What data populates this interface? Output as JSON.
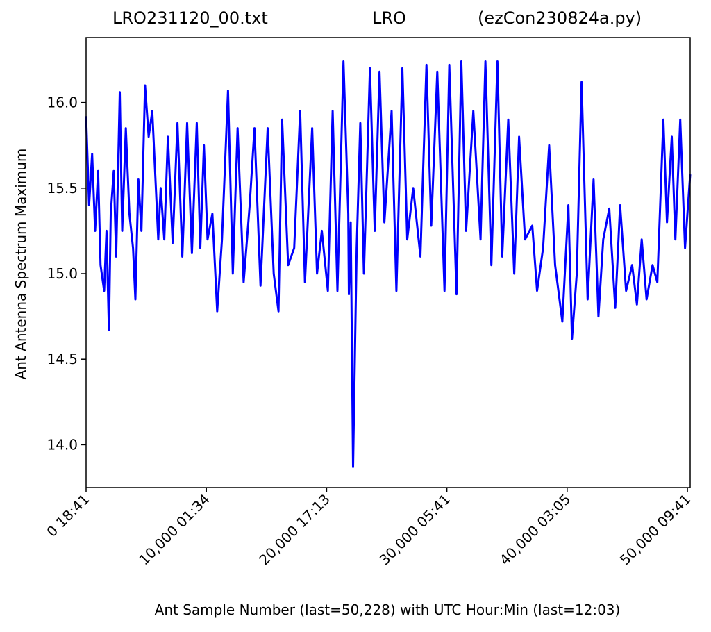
{
  "chart_data": {
    "type": "line",
    "title_parts": [
      "LRO231120_00.txt",
      "LRO",
      "(ezCon230824a.py)"
    ],
    "xlabel": "Ant Sample Number (last=50,228) with UTC Hour:Min (last=12:03)",
    "ylabel": "Ant Antenna Spectrum Maximum",
    "xlim": [
      0,
      50228
    ],
    "ylim": [
      13.75,
      16.38
    ],
    "x_ticks": [
      {
        "value": 0,
        "label": "0  18:41"
      },
      {
        "value": 10000,
        "label": "10,000  01:34"
      },
      {
        "value": 20000,
        "label": "20,000  17:13"
      },
      {
        "value": 30000,
        "label": "30,000  05:41"
      },
      {
        "value": 40000,
        "label": "40,000  03:05"
      },
      {
        "value": 50000,
        "label": "50,000  09:41"
      }
    ],
    "y_ticks": [
      {
        "value": 14.0,
        "label": "14.0"
      },
      {
        "value": 14.5,
        "label": "14.5"
      },
      {
        "value": 15.0,
        "label": "15.0"
      },
      {
        "value": 15.5,
        "label": "15.5"
      },
      {
        "value": 16.0,
        "label": "16.0"
      }
    ],
    "grid": false,
    "series": [
      {
        "color": "#0000ff",
        "x": [
          0,
          250,
          500,
          750,
          1000,
          1200,
          1500,
          1700,
          1900,
          2050,
          2300,
          2500,
          2800,
          3000,
          3300,
          3600,
          3900,
          4100,
          4350,
          4600,
          4900,
          5200,
          5500,
          5800,
          6000,
          6200,
          6500,
          6800,
          7200,
          7600,
          8000,
          8400,
          8800,
          9200,
          9500,
          9800,
          10100,
          10500,
          10900,
          11300,
          11800,
          12200,
          12600,
          13100,
          13600,
          14000,
          14500,
          15100,
          15600,
          16000,
          16300,
          16800,
          17300,
          17800,
          18200,
          18800,
          19200,
          19600,
          20100,
          20500,
          20900,
          21400,
          21800,
          21850,
          22000,
          22200,
          22500,
          22800,
          23100,
          23600,
          24000,
          24400,
          24800,
          25400,
          25800,
          26300,
          26700,
          27200,
          27800,
          28300,
          28700,
          29200,
          29800,
          30200,
          30800,
          31200,
          31600,
          32200,
          32800,
          33200,
          33700,
          34200,
          34600,
          35100,
          35600,
          36000,
          36500,
          37100,
          37500,
          38000,
          38500,
          39000,
          39600,
          40100,
          40400,
          40800,
          41200,
          41700,
          42200,
          42600,
          43000,
          43500,
          44000,
          44400,
          44900,
          45400,
          45800,
          46200,
          46600,
          47100,
          47500,
          48000,
          48300,
          48700,
          49000,
          49400,
          49800,
          50228
        ],
        "y": [
          15.92,
          15.4,
          15.7,
          15.25,
          15.6,
          15.05,
          14.9,
          15.25,
          14.67,
          15.35,
          15.6,
          15.1,
          16.06,
          15.25,
          15.85,
          15.35,
          15.15,
          14.85,
          15.55,
          15.25,
          16.1,
          15.8,
          15.95,
          15.5,
          15.2,
          15.5,
          15.2,
          15.8,
          15.18,
          15.88,
          15.1,
          15.88,
          15.12,
          15.88,
          15.15,
          15.75,
          15.2,
          15.35,
          14.78,
          15.2,
          16.07,
          15.0,
          15.85,
          14.95,
          15.4,
          15.85,
          14.93,
          15.85,
          15.0,
          14.78,
          15.9,
          15.05,
          15.15,
          15.95,
          14.95,
          15.85,
          15.0,
          15.25,
          14.9,
          15.95,
          14.9,
          16.24,
          15.35,
          14.88,
          15.3,
          13.87,
          15.15,
          15.88,
          15.0,
          16.2,
          15.25,
          16.18,
          15.3,
          15.95,
          14.9,
          16.2,
          15.2,
          15.5,
          15.1,
          16.22,
          15.28,
          16.18,
          14.9,
          16.22,
          14.88,
          16.24,
          15.25,
          15.95,
          15.2,
          16.24,
          15.05,
          16.24,
          15.1,
          15.9,
          15.0,
          15.8,
          15.2,
          15.28,
          14.9,
          15.15,
          15.75,
          15.05,
          14.72,
          15.4,
          14.62,
          15.0,
          16.12,
          14.85,
          15.55,
          14.75,
          15.2,
          15.38,
          14.8,
          15.4,
          14.9,
          15.05,
          14.82,
          15.2,
          14.85,
          15.05,
          14.95,
          15.9,
          15.3,
          15.8,
          15.2,
          15.9,
          15.15,
          15.58
        ]
      }
    ]
  }
}
